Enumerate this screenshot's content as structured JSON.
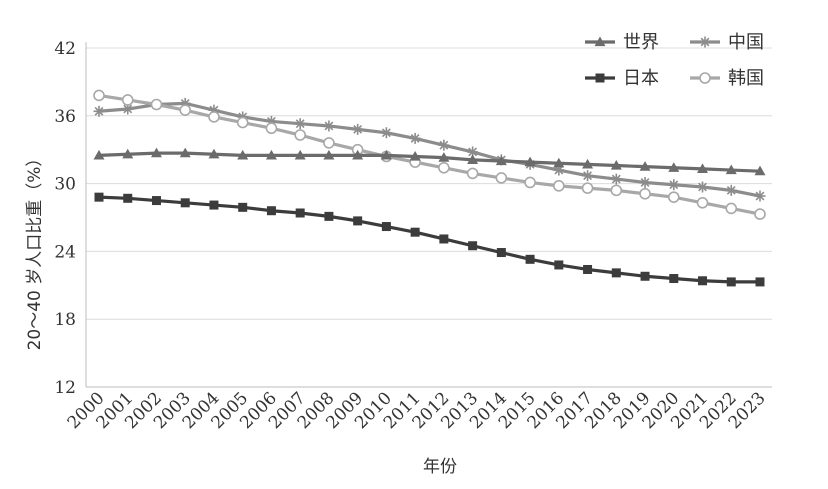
{
  "chart_data": {
    "type": "line",
    "title": "",
    "xlabel": "年份",
    "ylabel": "20～40 岁人口比重（%）",
    "ylim": [
      12,
      42
    ],
    "yticks": [
      12,
      18,
      24,
      30,
      36,
      42
    ],
    "grid": "horizontal",
    "legend_position": "top-right",
    "x": [
      "2000",
      "2001",
      "2002",
      "2003",
      "2004",
      "2005",
      "2006",
      "2007",
      "2008",
      "2009",
      "2010",
      "2011",
      "2012",
      "2013",
      "2014",
      "2015",
      "2016",
      "2017",
      "2018",
      "2019",
      "2020",
      "2021",
      "2022",
      "2023"
    ],
    "series": [
      {
        "name": "世界",
        "marker": "triangle",
        "color": "#6b6b6b",
        "values": [
          32.5,
          32.6,
          32.7,
          32.7,
          32.6,
          32.5,
          32.5,
          32.5,
          32.5,
          32.5,
          32.5,
          32.4,
          32.3,
          32.1,
          32.0,
          31.9,
          31.8,
          31.7,
          31.6,
          31.5,
          31.4,
          31.3,
          31.2,
          31.1
        ]
      },
      {
        "name": "中国",
        "marker": "asterisk",
        "color": "#8c8c8c",
        "values": [
          36.4,
          36.6,
          37.0,
          37.1,
          36.5,
          35.9,
          35.5,
          35.3,
          35.1,
          34.8,
          34.5,
          34.0,
          33.4,
          32.8,
          32.1,
          31.7,
          31.2,
          30.7,
          30.4,
          30.1,
          29.9,
          29.7,
          29.4,
          28.9
        ]
      },
      {
        "name": "日本",
        "marker": "square",
        "color": "#3c3c3c",
        "values": [
          28.8,
          28.7,
          28.5,
          28.3,
          28.1,
          27.9,
          27.6,
          27.4,
          27.1,
          26.7,
          26.2,
          25.7,
          25.1,
          24.5,
          23.9,
          23.3,
          22.8,
          22.4,
          22.1,
          21.8,
          21.6,
          21.4,
          21.3,
          21.3
        ]
      },
      {
        "name": "韩国",
        "marker": "circle",
        "color": "#a8a8a8",
        "values": [
          37.8,
          37.4,
          37.0,
          36.5,
          35.9,
          35.4,
          34.9,
          34.3,
          33.6,
          33.0,
          32.4,
          31.9,
          31.4,
          30.9,
          30.5,
          30.1,
          29.8,
          29.6,
          29.4,
          29.1,
          28.8,
          28.3,
          27.8,
          27.3
        ]
      }
    ]
  }
}
